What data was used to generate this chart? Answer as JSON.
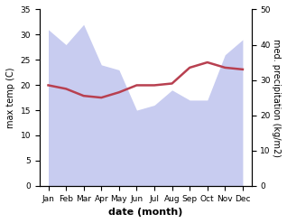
{
  "months": [
    "Jan",
    "Feb",
    "Mar",
    "Apr",
    "May",
    "Jun",
    "Jul",
    "Aug",
    "Sep",
    "Oct",
    "Nov",
    "Dec"
  ],
  "temp": [
    28.5,
    27.5,
    25.5,
    25.0,
    26.5,
    28.5,
    28.5,
    29.0,
    33.5,
    35.0,
    33.5,
    33.0
  ],
  "precip": [
    31.0,
    28.0,
    32.0,
    24.0,
    23.0,
    15.0,
    16.0,
    19.0,
    17.0,
    17.0,
    26.0,
    29.0
  ],
  "temp_color": "#b84050",
  "precip_fill_color": "#c8ccf0",
  "temp_ylim": [
    0,
    35
  ],
  "precip_ylim": [
    0,
    50
  ],
  "temp_yticks": [
    0,
    5,
    10,
    15,
    20,
    25,
    30,
    35
  ],
  "precip_yticks": [
    0,
    10,
    20,
    30,
    40,
    50
  ],
  "xlabel": "date (month)",
  "ylabel_left": "max temp (C)",
  "ylabel_right": "med. precipitation (kg/m2)",
  "bg_color": "#ffffff",
  "linewidth": 1.8,
  "xlabel_fontsize": 8,
  "ylabel_fontsize": 7,
  "tick_fontsize": 6.5
}
